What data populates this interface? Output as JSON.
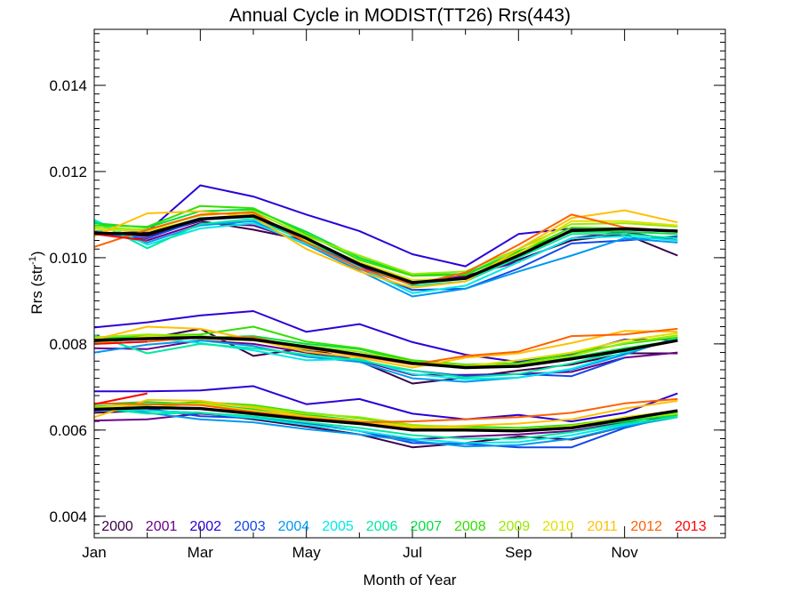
{
  "chart_data": {
    "type": "line",
    "title": "Annual Cycle in MODIST(TT26) Rrs(443)",
    "xlabel": "Month of Year",
    "ylabel_main": "Rrs (str",
    "ylabel_sup": "-1",
    "ylabel_close": ")",
    "xlim": [
      1,
      12.9
    ],
    "ylim": [
      0.0035,
      0.0153
    ],
    "x_ticks": [
      {
        "x": 1,
        "label": "Jan"
      },
      {
        "x": 3,
        "label": "Mar"
      },
      {
        "x": 5,
        "label": "May"
      },
      {
        "x": 7,
        "label": "Jul"
      },
      {
        "x": 9,
        "label": "Sep"
      },
      {
        "x": 11,
        "label": "Nov"
      }
    ],
    "y_ticks": [
      {
        "y": 0.004,
        "label": "0.004"
      },
      {
        "y": 0.006,
        "label": "0.006"
      },
      {
        "y": 0.008,
        "label": "0.008"
      },
      {
        "y": 0.01,
        "label": "0.010"
      },
      {
        "y": 0.012,
        "label": "0.012"
      },
      {
        "y": 0.014,
        "label": "0.014"
      }
    ],
    "years": [
      {
        "year": "2000",
        "color": "#3a0048"
      },
      {
        "year": "2001",
        "color": "#6a008a"
      },
      {
        "year": "2002",
        "color": "#2c00d8"
      },
      {
        "year": "2003",
        "color": "#1048e8"
      },
      {
        "year": "2004",
        "color": "#0098f0"
      },
      {
        "year": "2005",
        "color": "#00e8e8"
      },
      {
        "year": "2006",
        "color": "#00e8a0"
      },
      {
        "year": "2007",
        "color": "#00e040"
      },
      {
        "year": "2008",
        "color": "#30e000"
      },
      {
        "year": "2009",
        "color": "#98e800"
      },
      {
        "year": "2010",
        "color": "#e0e000"
      },
      {
        "year": "2011",
        "color": "#ffc000"
      },
      {
        "year": "2012",
        "color": "#ff6000"
      },
      {
        "year": "2013",
        "color": "#ff0000"
      }
    ],
    "groups": [
      {
        "name": "upper",
        "mean": [
          0.01057,
          0.01055,
          0.0109,
          0.01097,
          0.01045,
          0.00985,
          0.00942,
          0.00952,
          0.01005,
          0.01063,
          0.01067,
          0.01062
        ],
        "series": [
          [
            0.0106,
            0.0105,
            0.01085,
            0.01065,
            0.0104,
            0.00975,
            0.00945,
            0.00955,
            0.00995,
            0.0104,
            0.01055,
            0.01005
          ],
          [
            0.0106,
            0.0104,
            0.0108,
            0.01075,
            0.01035,
            0.0098,
            0.0094,
            0.00958,
            0.0099,
            0.01045,
            0.0106,
            0.0104
          ],
          [
            0.01055,
            0.0106,
            0.01168,
            0.01142,
            0.011,
            0.01062,
            0.01008,
            0.0098,
            0.01055,
            0.01068,
            0.01065,
            0.0106
          ],
          [
            0.01055,
            0.01045,
            0.01088,
            0.01095,
            0.0104,
            0.00975,
            0.00925,
            0.00928,
            0.00975,
            0.01033,
            0.0104,
            0.0105
          ],
          [
            0.01065,
            0.01035,
            0.01075,
            0.01085,
            0.0103,
            0.0097,
            0.0091,
            0.00928,
            0.00968,
            0.01005,
            0.01045,
            0.01035
          ],
          [
            0.01088,
            0.0103,
            0.01068,
            0.0108,
            0.01032,
            0.00978,
            0.00918,
            0.00935,
            0.0099,
            0.01045,
            0.0105,
            0.0104
          ],
          [
            0.01085,
            0.01022,
            0.01078,
            0.0109,
            0.01038,
            0.00985,
            0.00935,
            0.00945,
            0.01,
            0.01055,
            0.01055,
            0.01045
          ],
          [
            0.0108,
            0.0107,
            0.01108,
            0.01112,
            0.0106,
            0.01,
            0.0096,
            0.00962,
            0.01015,
            0.0106,
            0.0106,
            0.01055
          ],
          [
            0.01075,
            0.01072,
            0.0112,
            0.01115,
            0.01055,
            0.00995,
            0.00958,
            0.0096,
            0.01012,
            0.0107,
            0.01068,
            0.0106
          ],
          [
            0.0107,
            0.01065,
            0.01098,
            0.01108,
            0.0105,
            0.01005,
            0.00962,
            0.00968,
            0.0102,
            0.01078,
            0.0108,
            0.01072
          ],
          [
            0.01065,
            0.01062,
            0.0109,
            0.01102,
            0.0104,
            0.0099,
            0.00948,
            0.00952,
            0.0101,
            0.01085,
            0.01085,
            0.01075
          ],
          [
            0.0105,
            0.01103,
            0.01108,
            0.01095,
            0.0102,
            0.00968,
            0.0093,
            0.00945,
            0.0102,
            0.01092,
            0.0111,
            0.01082
          ],
          [
            0.01025,
            0.01065,
            0.011,
            0.01105,
            0.01035,
            0.00975,
            0.00938,
            0.00965,
            0.0103,
            0.011,
            0.0107,
            0.01062
          ],
          [
            0.01055,
            0.0104,
            null,
            null,
            null,
            null,
            null,
            null,
            null,
            null,
            null,
            null
          ]
        ]
      },
      {
        "name": "middle",
        "mean": [
          0.00808,
          0.00812,
          0.00815,
          0.0081,
          0.00793,
          0.00775,
          0.00755,
          0.00745,
          0.00748,
          0.00765,
          0.00785,
          0.00808
        ],
        "series": [
          [
            0.0081,
            0.00812,
            0.00835,
            0.00772,
            0.0079,
            0.0076,
            0.00708,
            0.00722,
            0.00738,
            0.00752,
            0.00778,
            0.00778
          ],
          [
            0.0079,
            0.00788,
            0.00808,
            0.008,
            0.0078,
            0.00762,
            0.00728,
            0.00728,
            0.0073,
            0.00735,
            0.00768,
            0.0078
          ],
          [
            0.00838,
            0.0085,
            0.00866,
            0.00876,
            0.00828,
            0.00846,
            0.00804,
            0.00775,
            0.00758,
            0.00776,
            0.0081,
            0.0081
          ],
          [
            0.00802,
            0.00815,
            0.00818,
            0.0081,
            0.00785,
            0.0076,
            0.00738,
            0.00725,
            0.0073,
            0.00725,
            0.00768,
            null
          ],
          [
            0.0078,
            0.00798,
            0.00808,
            0.00795,
            0.0077,
            0.00758,
            0.0072,
            0.00712,
            0.00722,
            0.0074,
            0.00775,
            0.00815
          ],
          [
            0.00802,
            0.00815,
            0.00802,
            0.00785,
            0.00762,
            0.00765,
            0.0073,
            0.00718,
            0.00722,
            0.00742,
            0.0078,
            0.00812
          ],
          [
            0.0082,
            0.00778,
            0.008,
            0.0079,
            0.00775,
            0.00762,
            0.00738,
            0.00722,
            0.0073,
            0.00755,
            0.00785,
            0.0081
          ],
          [
            0.00812,
            0.00818,
            0.00815,
            0.00818,
            0.008,
            0.00788,
            0.00758,
            0.00745,
            0.00748,
            0.00768,
            0.0079,
            0.00808
          ],
          [
            0.00805,
            0.0082,
            0.00822,
            0.0084,
            0.00805,
            0.0079,
            0.00762,
            0.00752,
            0.00755,
            0.00778,
            0.008,
            0.00815
          ],
          [
            0.00815,
            0.00822,
            0.00818,
            0.00812,
            0.00795,
            0.00782,
            0.00758,
            0.0075,
            0.00752,
            0.00772,
            0.00802,
            0.0082
          ],
          [
            0.008,
            0.00818,
            0.00812,
            0.00808,
            0.00788,
            0.00775,
            0.00752,
            0.00748,
            0.00762,
            0.0078,
            0.00808,
            0.00825
          ],
          [
            0.0081,
            0.0084,
            0.00835,
            0.0081,
            0.00782,
            0.00768,
            0.00745,
            0.00768,
            0.00778,
            0.00802,
            0.0083,
            0.00828
          ],
          [
            0.008,
            0.00805,
            0.00815,
            0.00815,
            0.0079,
            0.00772,
            0.00752,
            0.00772,
            0.00782,
            0.00818,
            0.00822,
            0.00835
          ],
          [
            0.008,
            0.00805,
            null,
            null,
            null,
            null,
            null,
            null,
            null,
            null,
            null,
            null
          ]
        ]
      },
      {
        "name": "lower",
        "mean": [
          0.00648,
          0.00652,
          0.0065,
          0.00638,
          0.00625,
          0.00615,
          0.006,
          0.006,
          0.00598,
          0.00605,
          0.00625,
          0.00645
        ],
        "series": [
          [
            0.0064,
            0.00645,
            0.0064,
            0.00625,
            0.00608,
            0.0059,
            0.0056,
            0.0057,
            0.00585,
            0.00578,
            0.00608,
            0.0064
          ],
          [
            0.00622,
            0.00625,
            0.00638,
            0.0063,
            0.00612,
            0.00598,
            0.00578,
            0.00585,
            0.0059,
            0.00598,
            0.00618,
            0.0064
          ],
          [
            0.0069,
            0.0069,
            0.00692,
            0.00702,
            0.0066,
            0.00672,
            0.00638,
            0.00625,
            0.00635,
            0.0062,
            0.0064,
            0.00685
          ],
          [
            0.00645,
            0.0065,
            0.00632,
            0.00628,
            0.00615,
            0.00598,
            0.0057,
            0.00568,
            0.0056,
            0.0056,
            0.00605,
            0.00635
          ],
          [
            0.00648,
            0.0064,
            0.00625,
            0.00618,
            0.00602,
            0.0059,
            0.00575,
            0.00562,
            0.00565,
            0.0058,
            0.00608,
            0.0063
          ],
          [
            0.0065,
            0.00645,
            0.0064,
            0.00628,
            0.00612,
            0.00598,
            0.0058,
            0.0057,
            0.00572,
            0.00588,
            0.00612,
            0.00632
          ],
          [
            0.00652,
            0.00638,
            0.0064,
            0.00632,
            0.00618,
            0.00605,
            0.00588,
            0.0058,
            0.0058,
            0.00595,
            0.00615,
            0.0063
          ],
          [
            0.0066,
            0.00665,
            0.0066,
            0.00648,
            0.00635,
            0.00622,
            0.00605,
            0.00602,
            0.00598,
            0.00605,
            0.0062,
            0.00635
          ],
          [
            0.00655,
            0.00658,
            0.00665,
            0.00658,
            0.0064,
            0.00628,
            0.0061,
            0.00608,
            0.00605,
            0.00612,
            0.00628,
            0.00642
          ],
          [
            0.00648,
            0.00652,
            0.00662,
            0.00655,
            0.00638,
            0.0063,
            0.00612,
            0.00605,
            0.00598,
            0.0061,
            0.00625,
            0.00638
          ],
          [
            0.00652,
            0.0066,
            0.0066,
            0.00645,
            0.0063,
            0.00622,
            0.00608,
            0.00602,
            0.006,
            0.00608,
            0.0063,
            0.00645
          ],
          [
            0.0063,
            0.0067,
            0.00668,
            0.00652,
            0.00632,
            0.0062,
            0.00605,
            0.0061,
            0.00615,
            0.00625,
            0.0065,
            0.00668
          ],
          [
            0.00662,
            0.0066,
            0.00658,
            0.00642,
            0.00628,
            0.00618,
            0.0062,
            0.00625,
            0.0063,
            0.0064,
            0.00662,
            0.00672
          ],
          [
            0.0066,
            0.00685,
            null,
            null,
            null,
            null,
            null,
            null,
            null,
            null,
            null,
            null
          ]
        ]
      }
    ]
  }
}
